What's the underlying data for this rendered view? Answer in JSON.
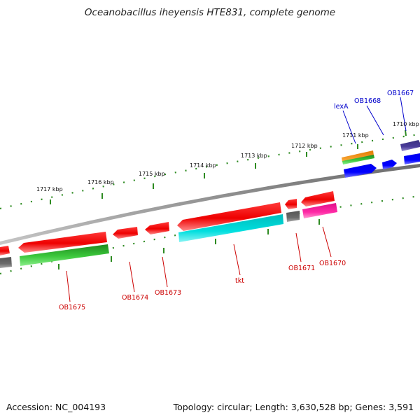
{
  "title": "Oceanobacillus iheyensis HTE831, complete genome",
  "footer": {
    "accession": "Accession: NC_004193",
    "summary": "Topology: circular; Length: 3,630,528 bp; Genes: 3,591"
  },
  "colors": {
    "forward_label": "#0000cc",
    "reverse_label": "#cc0000",
    "backbone": "#8a8a8a",
    "tick": "#2e8b22"
  },
  "position_ticks": [
    {
      "label": "1710 kbp"
    },
    {
      "label": "1711 kbp"
    },
    {
      "label": "1712 kbp"
    },
    {
      "label": "1713 kbp"
    },
    {
      "label": "1714 kbp"
    },
    {
      "label": "1715 kbp"
    },
    {
      "label": "1716 kbp"
    },
    {
      "label": "1717 kbp"
    }
  ],
  "gene_labels": [
    {
      "name": "OB1667",
      "strand": "forward"
    },
    {
      "name": "OB1668",
      "strand": "forward"
    },
    {
      "name": "lexA",
      "strand": "forward"
    },
    {
      "name": "OB1670",
      "strand": "reverse"
    },
    {
      "name": "OB1671",
      "strand": "reverse"
    },
    {
      "name": "tkt",
      "strand": "reverse"
    },
    {
      "name": "OB1673",
      "strand": "reverse"
    },
    {
      "name": "OB1674",
      "strand": "reverse"
    },
    {
      "name": "OB1675",
      "strand": "reverse"
    }
  ]
}
